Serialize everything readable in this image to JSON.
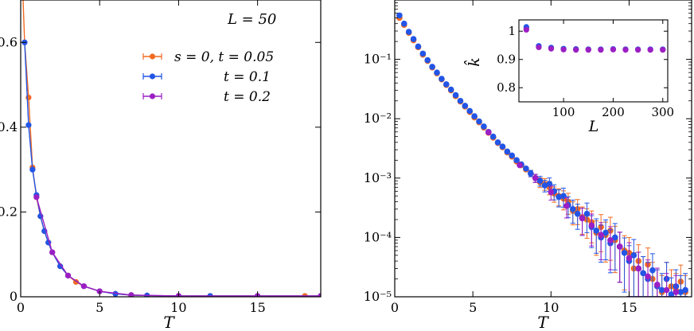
{
  "colors": {
    "orange": "#f26a21",
    "blue": "#2255e6",
    "purple": "#9b1fc4"
  },
  "chart_data": [
    {
      "type": "line",
      "xlabel": "T",
      "ylabel": "",
      "xlim": [
        0,
        19
      ],
      "ylim": [
        0,
        0.7
      ],
      "xticks": [
        0,
        5,
        10,
        15
      ],
      "yticks": [
        0,
        0.2,
        0.4,
        0.6
      ],
      "xtick_labels": [
        "0",
        "5",
        "10",
        "15"
      ],
      "ytick_labels": [
        "0",
        "0.2",
        "0.4",
        "0.6"
      ],
      "annotation": "L = 50",
      "legend_position": "top-right",
      "series": [
        {
          "name": "s = 0, t = 0.05",
          "color": "orange",
          "x": [
            0.1,
            0.25,
            0.5,
            0.75,
            1.0,
            1.25,
            1.5,
            1.75,
            2.0,
            2.5,
            3.0,
            3.5,
            4.0,
            5.0,
            6.0,
            7.0,
            8.0,
            10.0,
            12.0,
            15.0,
            18.0,
            19.0
          ],
          "y": [
            0.75,
            0.6,
            0.47,
            0.305,
            0.235,
            0.19,
            0.155,
            0.128,
            0.105,
            0.072,
            0.05,
            0.035,
            0.025,
            0.013,
            0.007,
            0.004,
            0.003,
            0.002,
            0.002,
            0.002,
            0.002,
            0.002
          ]
        },
        {
          "name": "t = 0.1",
          "color": "blue",
          "x": [
            0.25,
            0.5,
            0.75,
            1.0,
            1.25,
            1.5,
            1.75,
            2.0,
            2.5,
            3.0,
            4.0,
            5.0,
            6.0,
            7.0,
            8.0,
            10.0,
            12.0,
            15.0,
            19.0
          ],
          "y": [
            0.6,
            0.405,
            0.3,
            0.24,
            0.19,
            0.155,
            0.128,
            0.105,
            0.072,
            0.05,
            0.025,
            0.013,
            0.007,
            0.004,
            0.003,
            0.002,
            0.002,
            0.002,
            0.002
          ]
        },
        {
          "name": "t = 0.2",
          "color": "purple",
          "x": [
            1.0,
            2.0,
            3.0,
            4.0,
            5.0,
            7.0,
            10.0,
            15.0,
            19.0
          ],
          "y": [
            0.235,
            0.105,
            0.05,
            0.025,
            0.013,
            0.004,
            0.002,
            0.002,
            0.002
          ]
        }
      ]
    },
    {
      "type": "scatter",
      "xlabel": "T",
      "ylabel": "",
      "xlim": [
        0,
        19
      ],
      "ylim": [
        1e-05,
        1
      ],
      "yscale": "log",
      "xticks": [
        0,
        5,
        10,
        15
      ],
      "yticks": [
        1e-05,
        0.0001,
        0.001,
        0.01,
        0.1
      ],
      "xtick_labels": [
        "0",
        "5",
        "10",
        "15"
      ],
      "ytick_labels": [
        "10⁻⁵",
        "10⁻⁴",
        "10⁻³",
        "10⁻²",
        "10⁻¹"
      ],
      "series": [
        {
          "name": "t = 0.05",
          "color": "orange",
          "x": [
            0.3,
            0.6,
            0.9,
            1.2,
            1.5,
            1.8,
            2.1,
            2.4,
            2.7,
            3.0,
            3.3,
            3.6,
            3.9,
            4.2,
            4.5,
            4.8,
            5.1,
            5.4,
            5.7,
            6.0,
            6.3,
            6.6,
            6.9,
            7.2,
            7.5,
            7.8,
            8.1,
            8.4,
            8.7,
            9.0,
            9.3,
            9.6,
            9.9,
            10.2,
            10.5,
            10.8,
            11.1,
            11.4,
            11.7,
            12.0,
            12.3,
            12.6,
            12.9,
            13.2,
            13.5,
            13.8,
            14.1,
            14.4,
            14.7,
            15.0,
            15.3,
            15.6,
            15.9,
            16.2,
            16.5,
            16.8,
            17.1,
            17.4,
            17.7,
            18.0,
            18.3,
            18.6
          ],
          "y": [
            0.5,
            0.38,
            0.28,
            0.21,
            0.16,
            0.12,
            0.094,
            0.073,
            0.058,
            0.046,
            0.037,
            0.03,
            0.024,
            0.0195,
            0.016,
            0.013,
            0.0105,
            0.0087,
            0.0071,
            0.0058,
            0.0048,
            0.0039,
            0.0033,
            0.0027,
            0.0023,
            0.0019,
            0.00165,
            0.0014,
            0.0012,
            0.001,
            0.00085,
            0.0008,
            0.0007,
            0.00055,
            0.0005,
            0.00045,
            0.0004,
            0.00028,
            0.0003,
            0.00022,
            0.0002,
            0.00018,
            0.00012,
            0.00015,
            0.00011,
            0.00013,
            9e-05,
            7e-05,
            6e-05,
            5.5e-05,
            3e-05,
            4e-05,
            2.5e-05,
            3.5e-05,
            2e-05,
            1.5e-05,
            1.2e-05,
            2e-05,
            1.5e-05,
            1.3e-05,
            1.8e-05,
            1.2e-05
          ]
        },
        {
          "name": "t = 0.1",
          "color": "blue",
          "x": [
            0.3,
            0.6,
            0.9,
            1.2,
            1.5,
            1.8,
            2.1,
            2.4,
            2.7,
            3.0,
            3.3,
            3.6,
            3.9,
            4.2,
            4.5,
            4.8,
            5.1,
            5.4,
            5.7,
            6.0,
            6.3,
            6.6,
            6.9,
            7.2,
            7.5,
            7.8,
            8.1,
            8.4,
            8.7,
            9.0,
            9.3,
            9.6,
            9.9,
            10.2,
            10.5,
            10.8,
            11.1,
            11.4,
            11.7,
            12.0,
            12.3,
            12.6,
            12.9,
            13.2,
            13.5,
            13.8,
            14.1,
            14.4,
            14.7,
            15.0,
            15.3,
            15.6,
            15.9,
            16.2,
            16.5,
            16.8,
            17.1,
            17.4,
            17.7,
            18.0,
            18.3,
            18.6
          ],
          "y": [
            0.55,
            0.4,
            0.29,
            0.22,
            0.165,
            0.125,
            0.097,
            0.075,
            0.06,
            0.047,
            0.038,
            0.031,
            0.025,
            0.02,
            0.0165,
            0.0135,
            0.011,
            0.009,
            0.0074,
            0.006,
            0.005,
            0.004,
            0.0034,
            0.0028,
            0.0024,
            0.002,
            0.0017,
            0.00145,
            0.0012,
            0.001,
            0.0009,
            0.00075,
            0.0008,
            0.0006,
            0.00048,
            0.0005,
            0.00035,
            0.0003,
            0.00025,
            0.00021,
            0.00025,
            0.00015,
            0.00013,
            0.0001,
            0.00012,
            8e-05,
            0.0001,
            7e-05,
            5.5e-05,
            4e-05,
            5e-05,
            3e-05,
            2.5e-05,
            2e-05,
            2.8e-05,
            1.5e-05,
            1.3e-05,
            2e-05,
            1.1e-05,
            1.5e-05,
            1.2e-05,
            1.3e-05
          ]
        },
        {
          "name": "t = 0.2",
          "color": "purple",
          "x": [
            6.0,
            8.0,
            9.0,
            10.0,
            11.0,
            12.0,
            12.6,
            13.2,
            13.8,
            14.4,
            15.0,
            15.6,
            16.2,
            16.8,
            17.4,
            18.0
          ],
          "y": [
            0.0059,
            0.00165,
            0.001,
            0.00058,
            0.00034,
            0.00021,
            0.00016,
            0.00011,
            9e-05,
            7e-05,
            4.5e-05,
            3e-05,
            2.2e-05,
            1.6e-05,
            1.3e-05,
            1.2e-05
          ]
        }
      ]
    },
    {
      "type": "scatter",
      "xlabel": "L",
      "ylabel": "k̂",
      "xlim": [
        10,
        310
      ],
      "ylim": [
        0.75,
        1.04
      ],
      "xticks": [
        100,
        200,
        300
      ],
      "yticks": [
        0.8,
        0.9,
        1.0
      ],
      "xtick_labels": [
        "100",
        "200",
        "300"
      ],
      "ytick_labels": [
        "0.8",
        "0.9",
        "1"
      ],
      "series": [
        {
          "name": "t = 0.05",
          "color": "orange",
          "x": [
            25,
            50,
            75,
            100,
            125,
            150,
            175,
            200,
            225,
            250,
            275,
            300
          ],
          "y": [
            1.01,
            0.945,
            0.94,
            0.937,
            0.936,
            0.936,
            0.935,
            0.936,
            0.936,
            0.935,
            0.935,
            0.935
          ]
        },
        {
          "name": "t = 0.1",
          "color": "blue",
          "x": [
            25,
            50,
            75,
            100,
            125,
            150,
            175,
            200,
            225,
            250,
            275,
            300
          ],
          "y": [
            1.015,
            0.948,
            0.942,
            0.938,
            0.937,
            0.936,
            0.936,
            0.937,
            0.936,
            0.936,
            0.936,
            0.936
          ]
        },
        {
          "name": "t = 0.2",
          "color": "purple",
          "x": [
            25,
            50,
            75,
            100,
            125,
            150,
            175,
            200,
            225,
            250,
            275,
            300
          ],
          "y": [
            1.005,
            0.943,
            0.938,
            0.935,
            0.934,
            0.934,
            0.934,
            0.935,
            0.934,
            0.934,
            0.934,
            0.934
          ]
        }
      ]
    }
  ]
}
